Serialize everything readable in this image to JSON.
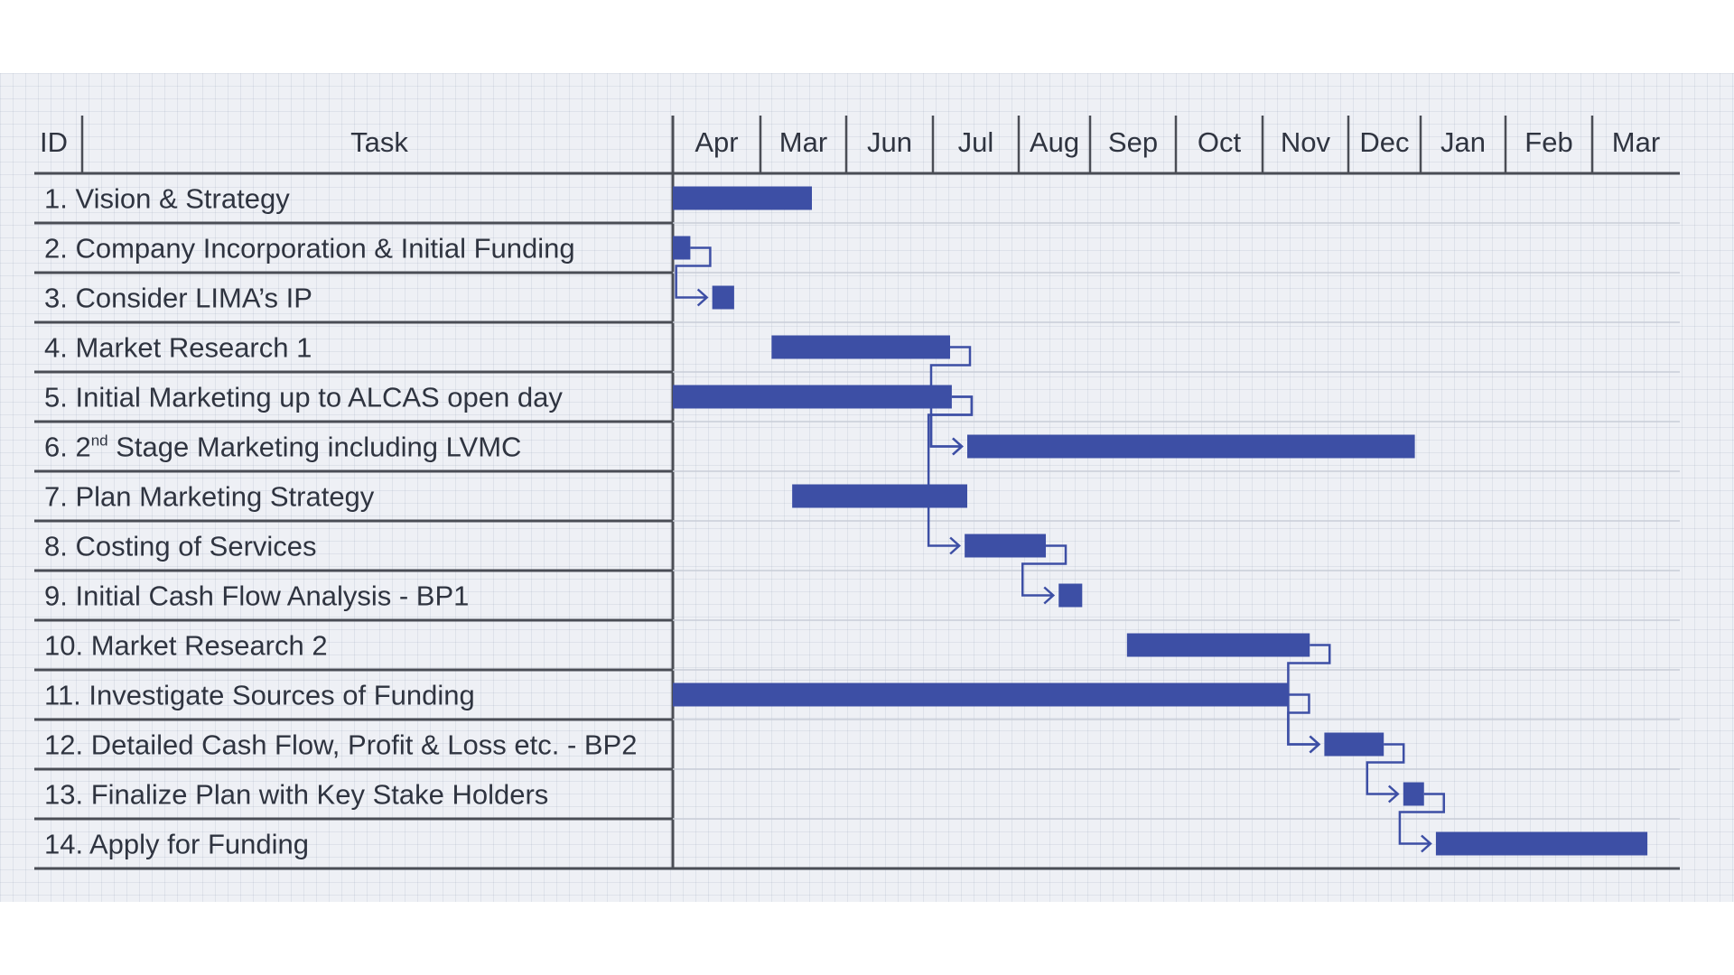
{
  "chart_data": {
    "type": "gantt",
    "headers": {
      "id": "ID",
      "task": "Task"
    },
    "months": [
      "Apr",
      "Mar",
      "Jun",
      "Jul",
      "Aug",
      "Sep",
      "Oct",
      "Nov",
      "Dec",
      "Jan",
      "Feb",
      "Mar"
    ],
    "tasks": [
      {
        "id": "1.",
        "name": "Vision & Strategy",
        "start": 0.0,
        "end": 1.6
      },
      {
        "id": "2.",
        "name": "Company Incorporation & Initial Funding",
        "start": 0.0,
        "end": 0.2
      },
      {
        "id": "3.",
        "name": "Consider LIMA’s IP",
        "start": 0.45,
        "end": 0.7
      },
      {
        "id": "4.",
        "name": "Market Research 1",
        "start": 1.13,
        "end": 3.2
      },
      {
        "id": "5.",
        "name": "Initial Marketing up to ALCAS open day",
        "start": 0.0,
        "end": 3.22
      },
      {
        "id": "6.",
        "name": "Stage Marketing including LVMC",
        "prefix": "2",
        "sup": "nd",
        "start": 3.4,
        "end": 8.92
      },
      {
        "id": "7.",
        "name": "Plan Marketing Strategy",
        "start": 1.37,
        "end": 3.4
      },
      {
        "id": "8.",
        "name": "Costing of Services",
        "start": 3.37,
        "end": 4.38
      },
      {
        "id": "9.",
        "name": "Initial Cash Flow Analysis - BP1",
        "start": 4.56,
        "end": 4.89
      },
      {
        "id": "10.",
        "name": "Market Research 2",
        "start": 5.43,
        "end": 7.55
      },
      {
        "id": "11.",
        "name": "Investigate Sources of Funding",
        "start": 0.0,
        "end": 7.31
      },
      {
        "id": "12.",
        "name": "Detailed Cash Flow, Profit & Loss etc. - BP2",
        "start": 7.72,
        "end": 8.49
      },
      {
        "id": "13.",
        "name": "Finalize Plan with Key Stake Holders",
        "start": 8.76,
        "end": 9.04
      },
      {
        "id": "14.",
        "name": "Apply for Funding",
        "start": 9.18,
        "end": 11.63
      }
    ],
    "dependencies": [
      {
        "from": 2,
        "to": 3
      },
      {
        "from": 4,
        "to": 6
      },
      {
        "from": 5,
        "to": 6
      },
      {
        "from": 5,
        "to": 8
      },
      {
        "from": 8,
        "to": 9
      },
      {
        "from": 10,
        "to": 12
      },
      {
        "from": 11,
        "to": 12
      },
      {
        "from": 12,
        "to": 13
      },
      {
        "from": 13,
        "to": 14
      }
    ],
    "colors": {
      "bar": "#3d4fa5",
      "line": "#3d4fa5",
      "rule": "#4a4d55",
      "text": "#2f3440"
    }
  }
}
